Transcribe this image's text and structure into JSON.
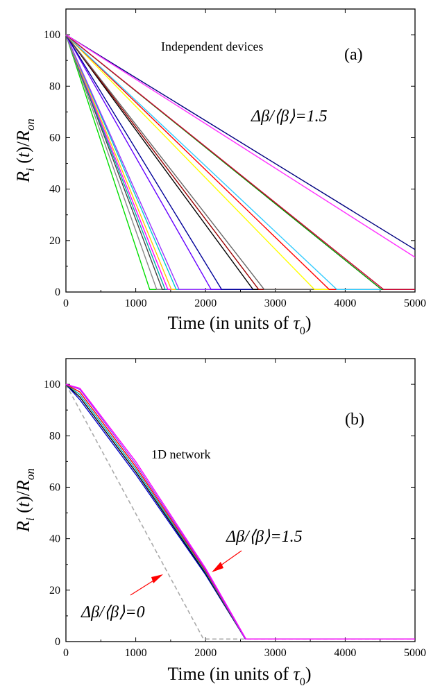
{
  "chart_data": [
    {
      "panel": "(a)",
      "type": "line",
      "title": "",
      "annotation": "Independent devices",
      "panel_label": "(a)",
      "param_label": "Δβ/⟨β⟩=1.5",
      "xlabel": "Time (in units of τ0)",
      "ylabel": "Ri(t)/Ron",
      "xlim": [
        0,
        5000
      ],
      "ylim": [
        0,
        110
      ],
      "xticks": [
        0,
        1000,
        2000,
        3000,
        4000,
        5000
      ],
      "yticks": [
        0,
        20,
        40,
        60,
        80,
        100
      ],
      "grid": false,
      "floor_value": 1,
      "series": [
        {
          "end_time": 1200,
          "color": "#00dd00"
        },
        {
          "end_time": 1300,
          "color": "#888888"
        },
        {
          "end_time": 1380,
          "color": "#444444"
        },
        {
          "end_time": 1420,
          "color": "#00aaaa"
        },
        {
          "end_time": 1460,
          "color": "#ff00ff"
        },
        {
          "end_time": 1510,
          "color": "#ffcc00"
        },
        {
          "end_time": 1580,
          "color": "#00cccc"
        },
        {
          "end_time": 1620,
          "color": "#9933ff"
        },
        {
          "end_time": 2080,
          "color": "#6600ff"
        },
        {
          "end_time": 2230,
          "color": "#000099"
        },
        {
          "end_time": 2680,
          "color": "#000000"
        },
        {
          "end_time": 2760,
          "color": "#990000"
        },
        {
          "end_time": 2840,
          "color": "#666666"
        },
        {
          "end_time": 3560,
          "color": "#ffff00"
        },
        {
          "end_time": 3770,
          "color": "#ff0000"
        },
        {
          "end_time": 3880,
          "color": "#33ccff"
        },
        {
          "end_time": 4520,
          "color": "#009900"
        },
        {
          "end_time": 4550,
          "color": "#cc0033"
        },
        {
          "points": [
            [
              0,
              100
            ],
            [
              5000,
              16.5
            ]
          ],
          "color": "#000080"
        },
        {
          "points": [
            [
              0,
              100
            ],
            [
              5000,
              13.5
            ]
          ],
          "color": "#ff33ff"
        }
      ]
    },
    {
      "panel": "(b)",
      "type": "line",
      "title": "",
      "annotation": "1D network",
      "panel_label": "(b)",
      "param_label": "Δβ/⟨β⟩=1.5",
      "param_label_zero": "Δβ/⟨β⟩=0",
      "xlabel": "Time (in units of τ0)",
      "ylabel": "Ri(t)/Ron",
      "xlim": [
        0,
        5000
      ],
      "ylim": [
        0,
        110
      ],
      "xticks": [
        0,
        1000,
        2000,
        3000,
        4000,
        5000
      ],
      "yticks": [
        0,
        20,
        40,
        60,
        80,
        100
      ],
      "grid": false,
      "floor_value": 1,
      "reference_series": {
        "points": [
          [
            0,
            100
          ],
          [
            1970,
            1
          ],
          [
            5000,
            1
          ]
        ],
        "color": "#aaaaaa",
        "dashed": true
      },
      "series": [
        {
          "points": [
            [
              0,
              100
            ],
            [
              200,
              94
            ],
            [
              1000,
              65
            ],
            [
              2000,
              26
            ],
            [
              2570,
              1
            ],
            [
              5000,
              1
            ]
          ],
          "color": "#0000cc"
        },
        {
          "points": [
            [
              0,
              100
            ],
            [
              200,
              95
            ],
            [
              1000,
              66
            ],
            [
              2000,
              26.5
            ],
            [
              2570,
              1
            ],
            [
              5000,
              1
            ]
          ],
          "color": "#000000"
        },
        {
          "points": [
            [
              0,
              100
            ],
            [
              200,
              96
            ],
            [
              1000,
              67
            ],
            [
              2000,
              27
            ],
            [
              2570,
              1
            ],
            [
              5000,
              1
            ]
          ],
          "color": "#00aaaa"
        },
        {
          "points": [
            [
              0,
              100
            ],
            [
              200,
              97
            ],
            [
              1000,
              68
            ],
            [
              2000,
              27.5
            ],
            [
              2570,
              1
            ],
            [
              5000,
              1
            ]
          ],
          "color": "#ff0000"
        },
        {
          "points": [
            [
              0,
              100
            ],
            [
              200,
              98
            ],
            [
              1000,
              69
            ],
            [
              2000,
              28
            ],
            [
              2570,
              1
            ],
            [
              5000,
              1
            ]
          ],
          "color": "#9933ff"
        },
        {
          "points": [
            [
              0,
              100
            ],
            [
              200,
              98.5
            ],
            [
              1000,
              70
            ],
            [
              2000,
              28.5
            ],
            [
              2580,
              1
            ],
            [
              5000,
              1
            ]
          ],
          "color": "#ff00ff"
        }
      ]
    }
  ]
}
